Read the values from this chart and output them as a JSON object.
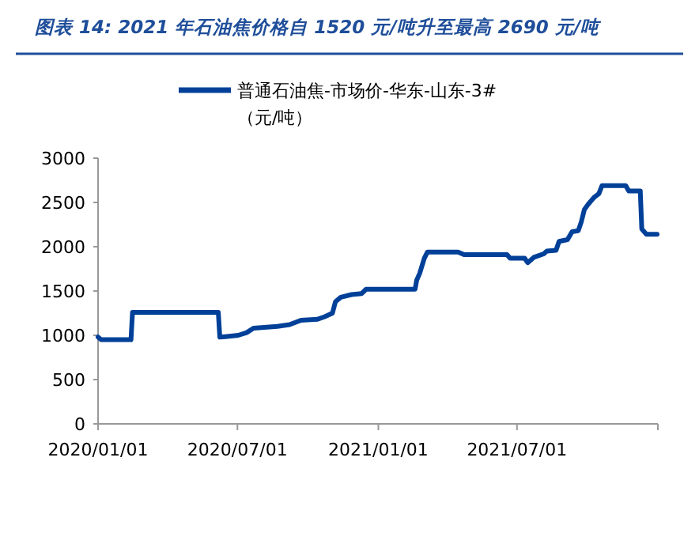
{
  "chart_data": {
    "type": "line",
    "title": "图表 14: 2021 年石油焦价格自 1520 元/吨升至最高 2690 元/吨",
    "x": [
      "2020-01-01",
      "2020-01-05",
      "2020-02-13",
      "2020-02-15",
      "2020-06-06",
      "2020-06-08",
      "2020-06-15",
      "2020-07-02",
      "2020-07-13",
      "2020-07-22",
      "2020-08-22",
      "2020-09-07",
      "2020-09-22",
      "2020-10-13",
      "2020-10-23",
      "2020-11-02",
      "2020-11-06",
      "2020-11-13",
      "2020-11-27",
      "2020-12-10",
      "2020-12-16",
      "2021-02-18",
      "2021-02-20",
      "2021-02-24",
      "2021-03-02",
      "2021-03-06",
      "2021-04-15",
      "2021-04-23",
      "2021-06-18",
      "2021-06-22",
      "2021-07-11",
      "2021-07-15",
      "2021-07-23",
      "2021-08-05",
      "2021-08-09",
      "2021-08-21",
      "2021-08-25",
      "2021-09-05",
      "2021-09-11",
      "2021-09-19",
      "2021-09-23",
      "2021-09-27",
      "2021-10-02",
      "2021-10-10",
      "2021-10-16",
      "2021-10-20",
      "2021-11-20",
      "2021-11-24",
      "2021-12-09",
      "2021-12-11",
      "2021-12-17",
      "2021-12-31"
    ],
    "series": [
      {
        "name": "普通石油焦-市场价-华东-山东-3#\n（元/吨）",
        "color": "#004098",
        "values": [
          980,
          950,
          950,
          1260,
          1260,
          980,
          985,
          1000,
          1030,
          1080,
          1100,
          1120,
          1170,
          1180,
          1210,
          1250,
          1380,
          1430,
          1460,
          1470,
          1520,
          1520,
          1620,
          1700,
          1870,
          1940,
          1940,
          1910,
          1910,
          1870,
          1870,
          1820,
          1880,
          1920,
          1950,
          1960,
          2060,
          2080,
          2170,
          2180,
          2280,
          2420,
          2480,
          2560,
          2600,
          2690,
          2690,
          2630,
          2630,
          2200,
          2140,
          2140
        ]
      }
    ],
    "xlim": [
      "2020-01-01",
      "2022-01-01"
    ],
    "xticks": [
      {
        "value": "2020-01-01",
        "label": "2020/01/01"
      },
      {
        "value": "2020-07-01",
        "label": "2020/07/01"
      },
      {
        "value": "2021-01-01",
        "label": "2021/01/01"
      },
      {
        "value": "2021-07-01",
        "label": "2021/07/01"
      },
      {
        "value": "2022-01-01",
        "label": null
      }
    ],
    "ylim": [
      0,
      3000
    ],
    "yticks": [
      0,
      500,
      1000,
      1500,
      2000,
      2500,
      3000
    ],
    "legend": "top",
    "grid": false,
    "marker": "none",
    "line_style": "solid"
  }
}
